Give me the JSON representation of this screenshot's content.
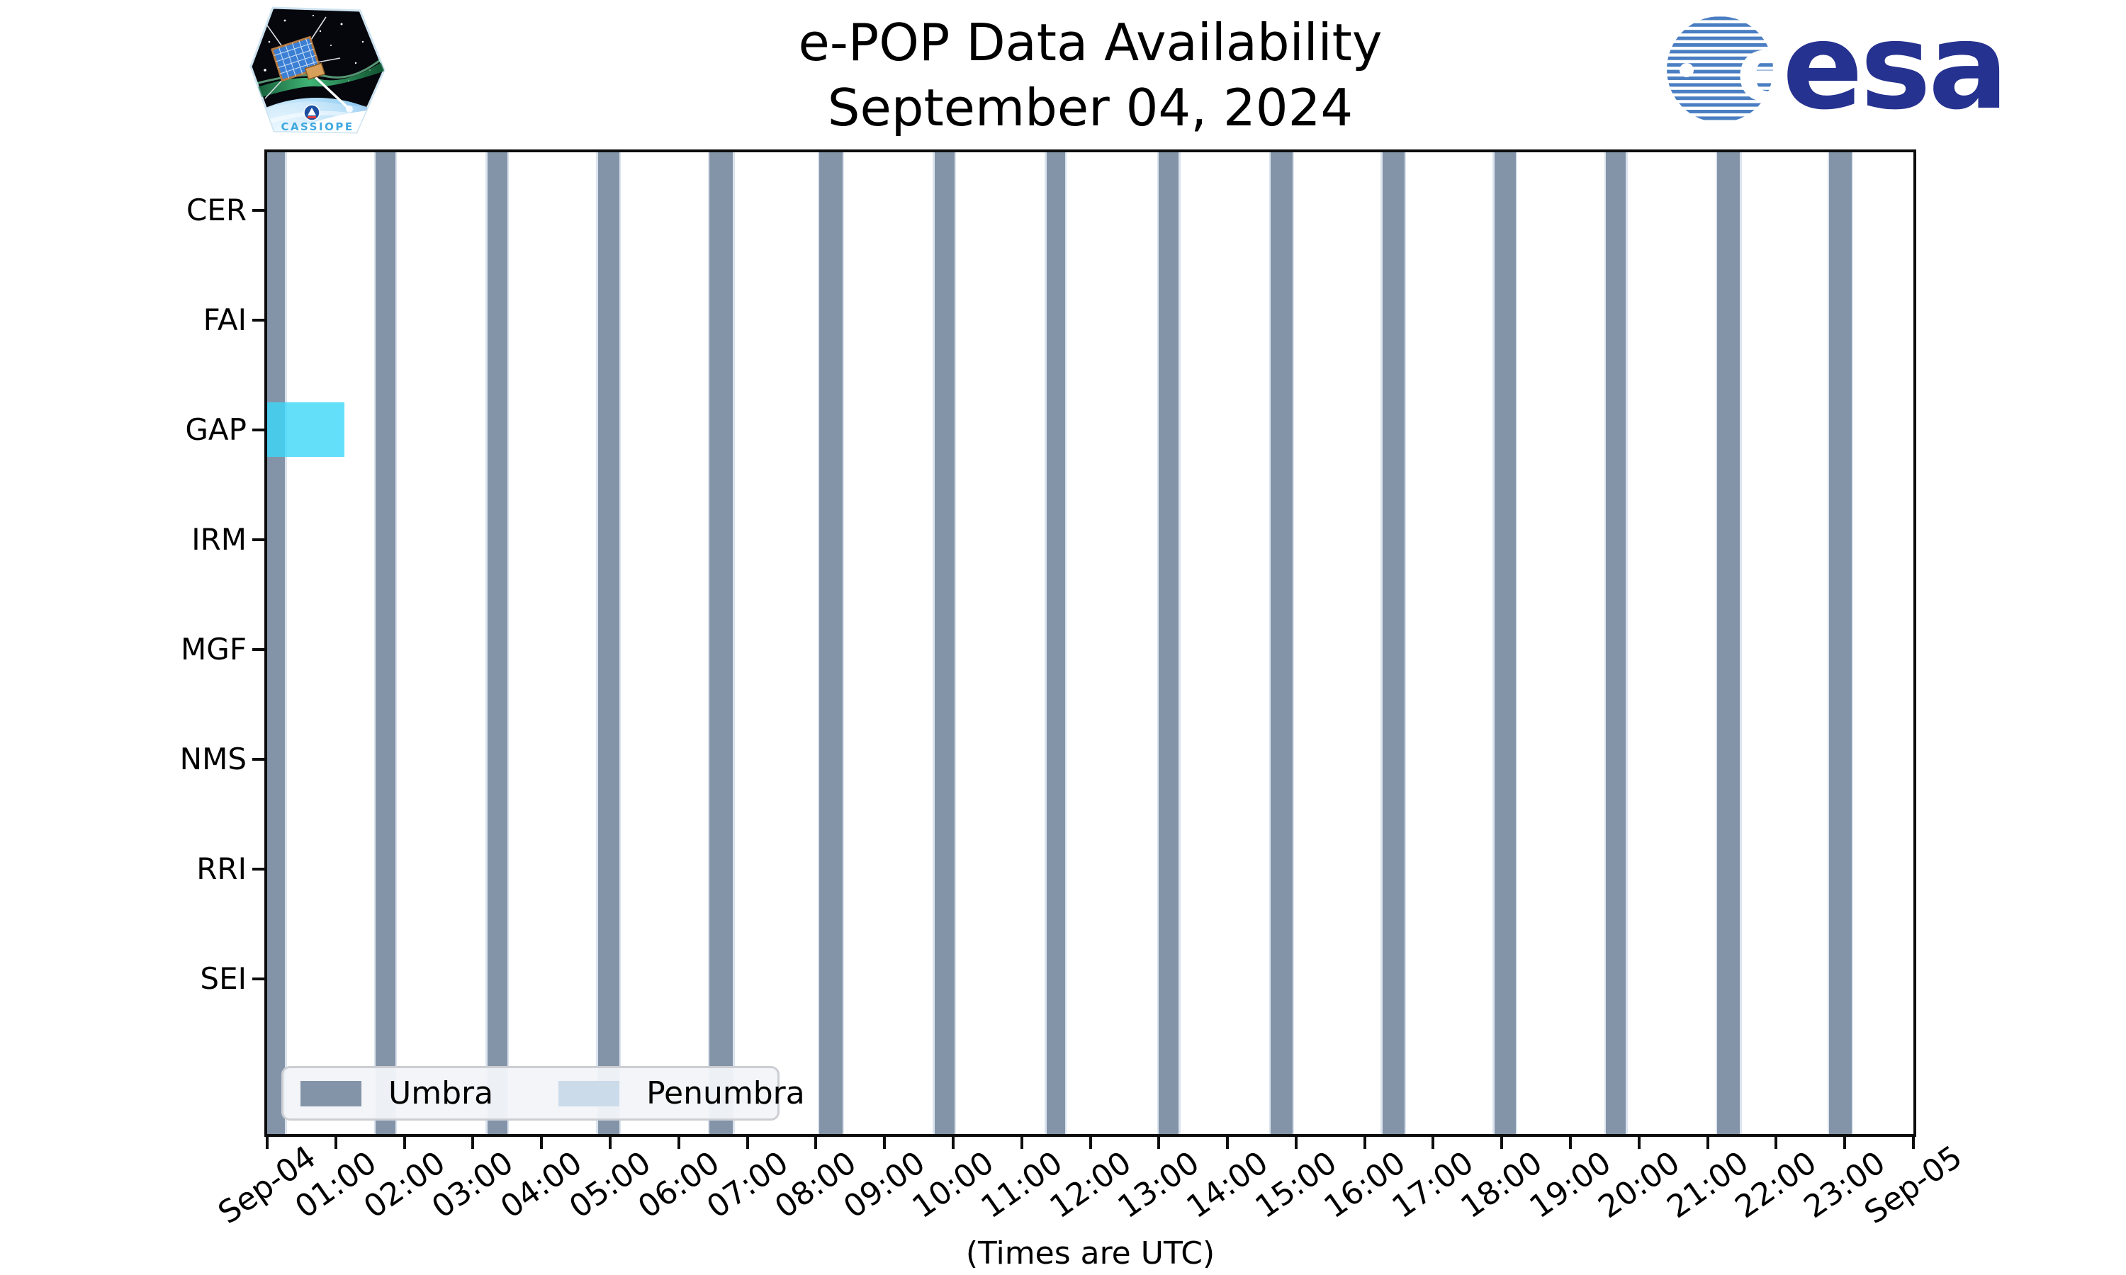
{
  "header": {
    "title_line1": "e-POP Data Availability",
    "title_line2": "September 04, 2024",
    "cassiope_patch_text": "CASSIOPE",
    "esa_logo_text": "esa"
  },
  "footer": {
    "xlabel": "(Times are UTC)"
  },
  "chart_data": {
    "type": "timeline",
    "title": "e-POP Data Availability",
    "subtitle": "September 04, 2024",
    "xlabel": "(Times are UTC)",
    "x_range_hours": [
      0,
      24
    ],
    "x_tick_labels": [
      "Sep-04",
      "01:00",
      "02:00",
      "03:00",
      "04:00",
      "05:00",
      "06:00",
      "07:00",
      "08:00",
      "09:00",
      "10:00",
      "11:00",
      "12:00",
      "13:00",
      "14:00",
      "15:00",
      "16:00",
      "17:00",
      "18:00",
      "19:00",
      "20:00",
      "21:00",
      "22:00",
      "23:00",
      "Sep-05"
    ],
    "instruments": [
      "CER",
      "FAI",
      "GAP",
      "IRM",
      "MGF",
      "NMS",
      "RRI",
      "SEI"
    ],
    "umbra_intervals_hours": [
      [
        0.0,
        0.26
      ],
      [
        1.58,
        1.87
      ],
      [
        3.21,
        3.5
      ],
      [
        4.82,
        5.13
      ],
      [
        6.45,
        6.79
      ],
      [
        8.05,
        8.39
      ],
      [
        9.73,
        10.02
      ],
      [
        11.36,
        11.63
      ],
      [
        13.0,
        13.29
      ],
      [
        14.63,
        14.95
      ],
      [
        16.26,
        16.58
      ],
      [
        17.89,
        18.2
      ],
      [
        19.52,
        19.81
      ],
      [
        21.14,
        21.47
      ],
      [
        22.77,
        23.1
      ]
    ],
    "penumbra_margin_hours": 0.025,
    "availability_bars": [
      {
        "instrument": "GAP",
        "start_hour": 0.0,
        "end_hour": 1.13
      }
    ],
    "legend": {
      "entries": [
        {
          "label": "Umbra",
          "color": "#8494a8"
        },
        {
          "label": "Penumbra",
          "color": "#ccdbea"
        }
      ]
    },
    "colors": {
      "umbra": "#8494a8",
      "penumbra": "#dbe4ee",
      "availability": "#3cd7f9",
      "availability_alpha": 0.8,
      "axis": "#0c0c0c"
    },
    "grid": false,
    "legend_position": "lower-left"
  }
}
